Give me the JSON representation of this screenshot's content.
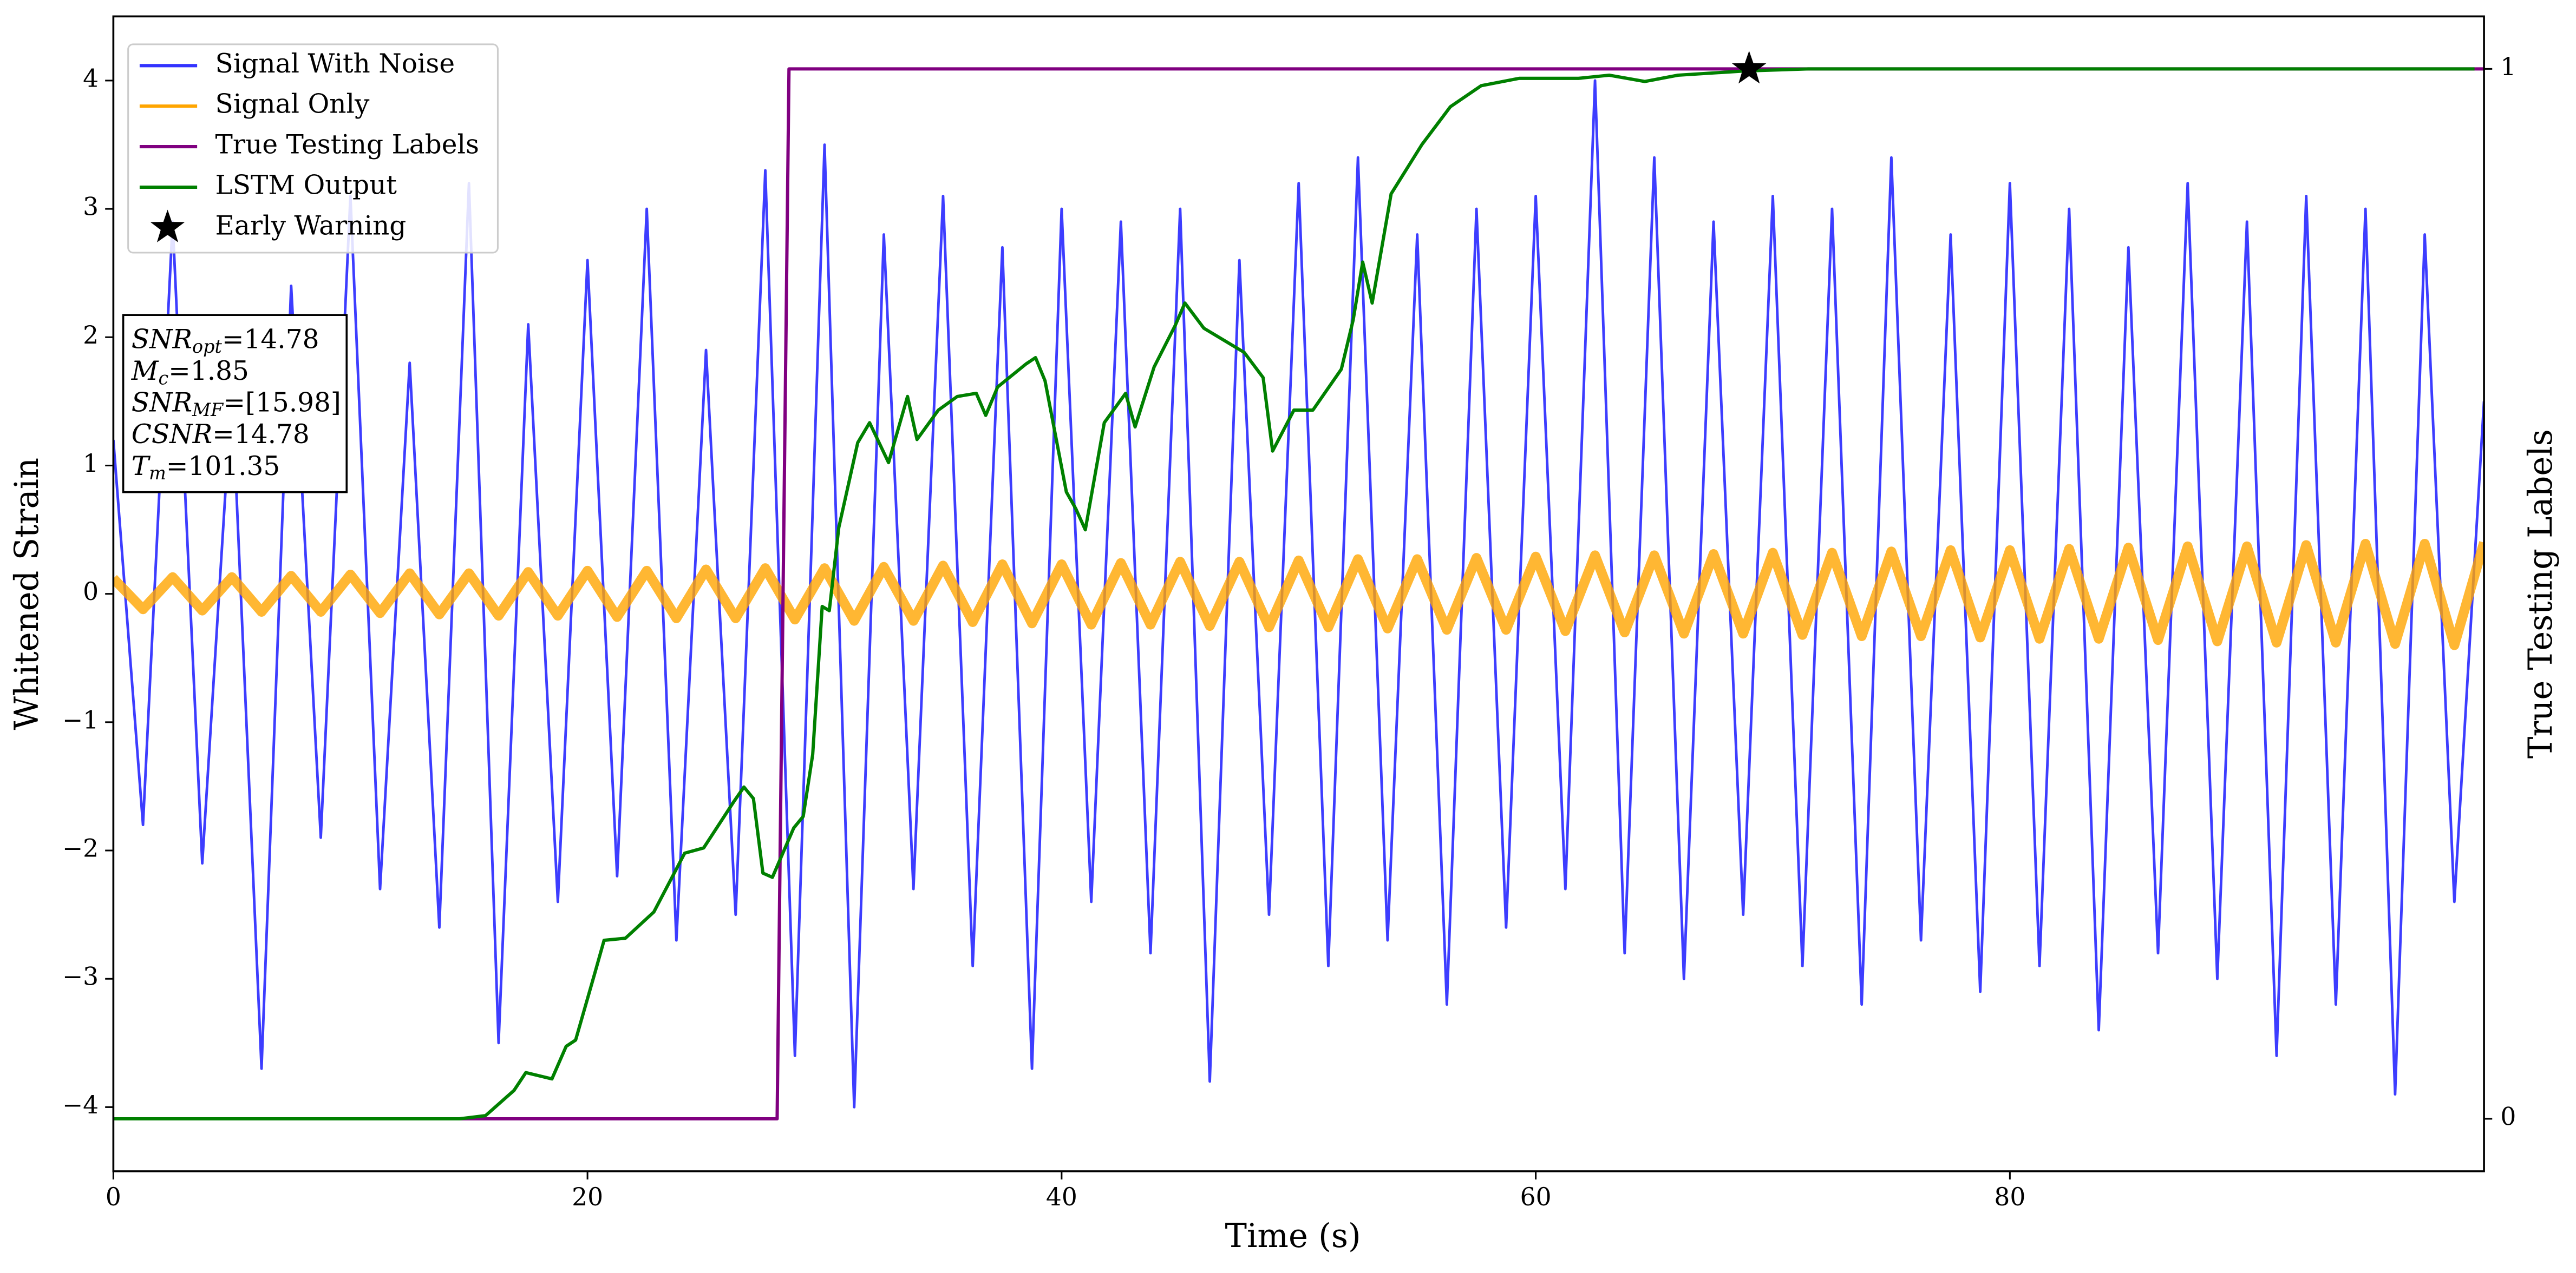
{
  "chart_data": {
    "type": "line",
    "xlabel": "Time (s)",
    "ylabel": "Whitened Strain",
    "y2label": "True Testing Labels",
    "xlim": [
      0,
      100
    ],
    "xticks": [
      0,
      20,
      40,
      60,
      80
    ],
    "ylim": [
      -4.5,
      4.5
    ],
    "yticks": [
      -4,
      -3,
      -2,
      -1,
      0,
      1,
      2,
      3,
      4
    ],
    "y2lim": [
      -0.05,
      1.05
    ],
    "y2ticks": [
      0,
      1
    ],
    "grid": false,
    "legend": "upper left",
    "series": [
      {
        "name": "Signal With Noise",
        "color": "#3333ff",
        "axis": "y",
        "x": [
          0,
          1.25,
          2.5,
          3.75,
          5,
          6.25,
          7.5,
          8.75,
          10,
          11.25,
          12.5,
          13.75,
          15,
          16.25,
          17.5,
          18.75,
          20,
          21.25,
          22.5,
          23.75,
          25,
          26.25,
          27.5,
          28.75,
          30,
          31.25,
          32.5,
          33.75,
          35,
          36.25,
          37.5,
          38.75,
          40,
          41.25,
          42.5,
          43.75,
          45,
          46.25,
          47.5,
          48.75,
          50,
          51.25,
          52.5,
          53.75,
          55,
          56.25,
          57.5,
          58.75,
          60,
          61.25,
          62.5,
          63.75,
          65,
          66.25,
          67.5,
          68.75,
          70,
          71.25,
          72.5,
          73.75,
          75,
          76.25,
          77.5,
          78.75,
          80,
          81.25,
          82.5,
          83.75,
          85,
          86.25,
          87.5,
          88.75,
          90,
          91.25,
          92.5,
          93.75,
          95,
          96.25,
          97.5,
          98.75,
          100
        ],
        "values": [
          1.2,
          -1.8,
          2.9,
          -2.1,
          1.6,
          -3.7,
          2.4,
          -1.9,
          3.1,
          -2.3,
          1.8,
          -2.6,
          3.2,
          -3.5,
          2.1,
          -2.4,
          2.6,
          -2.2,
          3.0,
          -2.7,
          1.9,
          -2.5,
          3.3,
          -3.6,
          3.5,
          -4.0,
          2.8,
          -2.3,
          3.1,
          -2.9,
          2.7,
          -3.7,
          3.0,
          -2.4,
          2.9,
          -2.8,
          3.0,
          -3.8,
          2.6,
          -2.5,
          3.2,
          -2.9,
          3.4,
          -2.7,
          2.8,
          -3.2,
          3.0,
          -2.6,
          3.1,
          -2.3,
          4.0,
          -2.8,
          3.4,
          -3.0,
          2.9,
          -2.5,
          3.1,
          -2.9,
          3.0,
          -3.2,
          3.4,
          -2.7,
          2.8,
          -3.1,
          3.2,
          -2.9,
          3.0,
          -3.4,
          2.7,
          -2.8,
          3.2,
          -3.0,
          2.9,
          -3.6,
          3.1,
          -3.2,
          3.0,
          -3.9,
          2.8,
          -2.4,
          1.5
        ]
      },
      {
        "name": "Signal Only",
        "color": "#ffa500",
        "axis": "y",
        "x": [
          0,
          1.25,
          2.5,
          3.75,
          5,
          6.25,
          7.5,
          8.75,
          10,
          11.25,
          12.5,
          13.75,
          15,
          16.25,
          17.5,
          18.75,
          20,
          21.25,
          22.5,
          23.75,
          25,
          26.25,
          27.5,
          28.75,
          30,
          31.25,
          32.5,
          33.75,
          35,
          36.25,
          37.5,
          38.75,
          40,
          41.25,
          42.5,
          43.75,
          45,
          46.25,
          47.5,
          48.75,
          50,
          51.25,
          52.5,
          53.75,
          55,
          56.25,
          57.5,
          58.75,
          60,
          61.25,
          62.5,
          63.75,
          65,
          66.25,
          67.5,
          68.75,
          70,
          71.25,
          72.5,
          73.75,
          75,
          76.25,
          77.5,
          78.75,
          80,
          81.25,
          82.5,
          83.75,
          85,
          86.25,
          87.5,
          88.75,
          90,
          91.25,
          92.5,
          93.75,
          95,
          96.25,
          97.5,
          98.75,
          100
        ],
        "values": [
          0.12,
          -0.12,
          0.13,
          -0.13,
          0.13,
          -0.14,
          0.14,
          -0.14,
          0.15,
          -0.15,
          0.16,
          -0.16,
          0.16,
          -0.17,
          0.17,
          -0.17,
          0.18,
          -0.18,
          0.18,
          -0.19,
          0.19,
          -0.19,
          0.2,
          -0.2,
          0.2,
          -0.21,
          0.21,
          -0.21,
          0.22,
          -0.22,
          0.23,
          -0.23,
          0.23,
          -0.24,
          0.24,
          -0.24,
          0.25,
          -0.25,
          0.25,
          -0.26,
          0.26,
          -0.26,
          0.27,
          -0.27,
          0.27,
          -0.28,
          0.28,
          -0.28,
          0.29,
          -0.29,
          0.3,
          -0.3,
          0.3,
          -0.31,
          0.31,
          -0.31,
          0.32,
          -0.32,
          0.32,
          -0.33,
          0.33,
          -0.33,
          0.34,
          -0.34,
          0.34,
          -0.35,
          0.35,
          -0.35,
          0.36,
          -0.36,
          0.37,
          -0.37,
          0.37,
          -0.38,
          0.38,
          -0.38,
          0.39,
          -0.39,
          0.39,
          -0.4,
          0.4
        ]
      },
      {
        "name": "True Testing Labels",
        "color": "#800080",
        "axis": "y2",
        "x": [
          0,
          28,
          28.5,
          100
        ],
        "values": [
          0,
          0,
          1,
          1
        ]
      },
      {
        "name": "LSTM Output",
        "color": "#008000",
        "axis": "y2",
        "x": [
          0,
          14.6,
          15.7,
          16.9,
          17.4,
          18.5,
          19.1,
          19.5,
          20.3,
          20.7,
          21.6,
          22.8,
          24.1,
          24.9,
          26.2,
          26.6,
          27.0,
          27.4,
          27.8,
          28.7,
          29.1,
          29.5,
          29.9,
          30.2,
          30.6,
          31.4,
          31.9,
          32.7,
          33.5,
          33.9,
          34.8,
          35.6,
          36.4,
          36.8,
          37.3,
          38.5,
          38.9,
          39.3,
          40.2,
          40.6,
          41.0,
          41.8,
          42.7,
          43.1,
          43.9,
          44.8,
          45.2,
          46.0,
          47.7,
          48.5,
          48.9,
          49.8,
          50.6,
          51.8,
          52.3,
          52.7,
          53.1,
          53.9,
          55.2,
          56.4,
          57.7,
          59.3,
          61.8,
          63.1,
          64.6,
          66.0,
          68.8,
          71.5,
          99.6
        ],
        "values": [
          0,
          0,
          0.003,
          0.027,
          0.044,
          0.038,
          0.069,
          0.075,
          0.138,
          0.17,
          0.172,
          0.197,
          0.253,
          0.258,
          0.303,
          0.316,
          0.305,
          0.234,
          0.23,
          0.277,
          0.288,
          0.347,
          0.488,
          0.484,
          0.563,
          0.644,
          0.663,
          0.625,
          0.688,
          0.647,
          0.675,
          0.688,
          0.691,
          0.67,
          0.697,
          0.719,
          0.725,
          0.703,
          0.597,
          0.581,
          0.561,
          0.663,
          0.691,
          0.659,
          0.716,
          0.756,
          0.777,
          0.753,
          0.73,
          0.706,
          0.636,
          0.675,
          0.675,
          0.714,
          0.761,
          0.816,
          0.777,
          0.881,
          0.928,
          0.964,
          0.984,
          0.991,
          0.991,
          0.994,
          0.988,
          0.994,
          0.998,
          1,
          1
        ]
      },
      {
        "name": "Early Warning",
        "color": "#000000",
        "axis": "y2",
        "marker": "star",
        "x": [
          69.0
        ],
        "values": [
          1
        ]
      }
    ],
    "annotations": [
      {
        "main": "SNR",
        "sub": "opt",
        "rest": "=14.78"
      },
      {
        "main": "M",
        "sub": "c",
        "rest": "=1.85"
      },
      {
        "main": "SNR",
        "sub": "MF",
        "rest": "=[15.98]"
      },
      {
        "main": "CSNR",
        "rest": "=14.78"
      },
      {
        "main": "T",
        "sub": "m",
        "rest": "=101.35"
      }
    ]
  }
}
